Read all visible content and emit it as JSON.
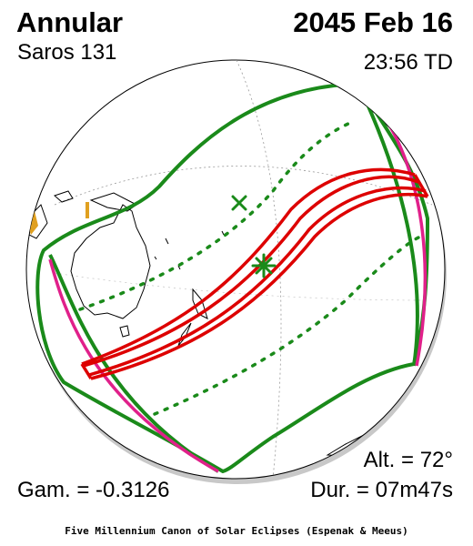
{
  "header": {
    "eclipse_type": "Annular",
    "saros": "Saros 131",
    "date": "2045 Feb 16",
    "time": "23:56 TD"
  },
  "stats": {
    "altitude": "Alt. = 72°",
    "gamma": "Gam. = -0.3126",
    "duration": "Dur. = 07m47s"
  },
  "footer": {
    "credit": "Five Millennium Canon of Solar Eclipses (Espenak & Meeus)"
  },
  "map": {
    "colors": {
      "penumbra": "#1a8a1a",
      "antumbra": "#dd0000",
      "rise_set": "#e0208a",
      "land": "#000000",
      "land_accent": "#e0a020"
    },
    "markers": {
      "greatest_eclipse": "star-marker",
      "subsolar_point": "x-marker"
    }
  }
}
